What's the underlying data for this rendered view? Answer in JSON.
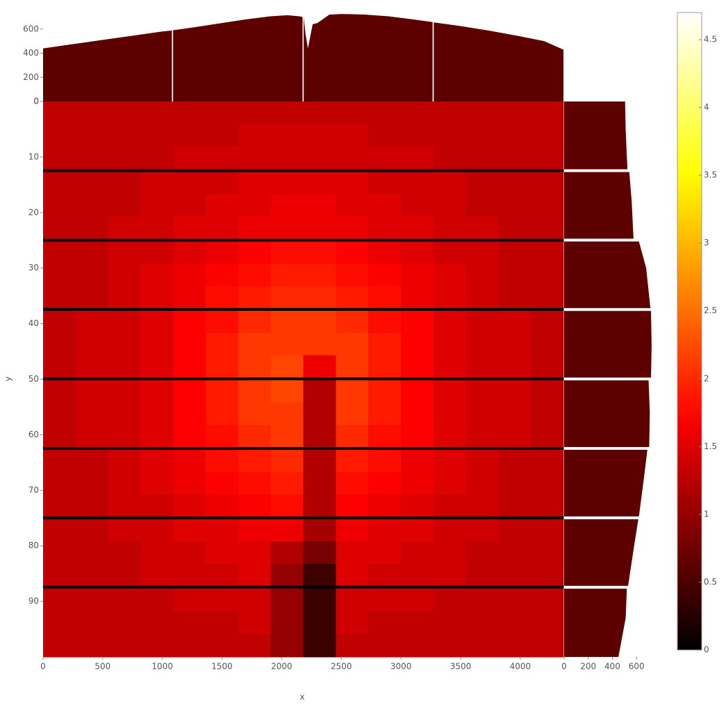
{
  "chart_data": [
    {
      "type": "heatmap",
      "x_label": "x",
      "y_label": "y",
      "colormap": "hot",
      "xlim": [
        0,
        4362
      ],
      "xticks": [
        0,
        500,
        1000,
        1500,
        2000,
        2500,
        3000,
        3500,
        4000
      ],
      "ylim": [
        0,
        100
      ],
      "y_inverted": true,
      "yticks": [
        0,
        10,
        20,
        30,
        40,
        50,
        60,
        70,
        80,
        90
      ],
      "clim": [
        0,
        4.7
      ],
      "cticks": [
        0,
        0.5,
        1,
        1.5,
        2,
        2.5,
        3,
        3.5,
        4,
        4.5
      ],
      "x_edges": [
        0,
        272.6,
        545.3,
        817.9,
        1090.5,
        1363.1,
        1635.8,
        1908.4,
        2181,
        2453.6,
        2726.3,
        2998.9,
        3271.5,
        3544.1,
        3816.8,
        4089.4,
        4362
      ],
      "y_edges": [
        0,
        4,
        8,
        12.2,
        12.7,
        16.7,
        20.7,
        24.7,
        25.2,
        29.2,
        33.2,
        37.2,
        37.7,
        41.7,
        45.7,
        49.7,
        50.2,
        54.2,
        58.2,
        62.2,
        62.7,
        66.7,
        70.7,
        74.7,
        75.2,
        79.2,
        83.2,
        87.2,
        87.7,
        91.8,
        95.9,
        100
      ],
      "values": [
        [
          1.3,
          1.3,
          1.3,
          1.3,
          1.3,
          1.3,
          1.3,
          1.3,
          1.3,
          1.3,
          1.3,
          1.3,
          1.3,
          1.3,
          1.3,
          1.3
        ],
        [
          1.3,
          1.3,
          1.3,
          1.3,
          1.3,
          1.3,
          1.4,
          1.4,
          1.4,
          1.4,
          1.3,
          1.3,
          1.3,
          1.3,
          1.3,
          1.3
        ],
        [
          1.3,
          1.3,
          1.3,
          1.3,
          1.4,
          1.4,
          1.4,
          1.4,
          1.4,
          1.4,
          1.4,
          1.4,
          1.3,
          1.3,
          1.3,
          1.3
        ],
        [
          0,
          0,
          0,
          0,
          0,
          0,
          0,
          0,
          0,
          0,
          0,
          0,
          0,
          0,
          0,
          0
        ],
        [
          1.3,
          1.3,
          1.3,
          1.4,
          1.4,
          1.4,
          1.5,
          1.5,
          1.5,
          1.5,
          1.4,
          1.4,
          1.4,
          1.3,
          1.3,
          1.3
        ],
        [
          1.3,
          1.3,
          1.3,
          1.4,
          1.4,
          1.5,
          1.5,
          1.6,
          1.6,
          1.5,
          1.5,
          1.4,
          1.4,
          1.3,
          1.3,
          1.3
        ],
        [
          1.3,
          1.3,
          1.4,
          1.4,
          1.5,
          1.5,
          1.6,
          1.6,
          1.6,
          1.6,
          1.5,
          1.5,
          1.4,
          1.4,
          1.3,
          1.3
        ],
        [
          0,
          0,
          0,
          0,
          0,
          0,
          0,
          0,
          0,
          0,
          0,
          0,
          0,
          0,
          0,
          0
        ],
        [
          1.3,
          1.3,
          1.4,
          1.4,
          1.5,
          1.6,
          1.7,
          1.8,
          1.8,
          1.7,
          1.6,
          1.5,
          1.4,
          1.4,
          1.3,
          1.3
        ],
        [
          1.3,
          1.3,
          1.4,
          1.5,
          1.6,
          1.7,
          1.8,
          1.9,
          1.9,
          1.8,
          1.7,
          1.6,
          1.5,
          1.4,
          1.3,
          1.3
        ],
        [
          1.3,
          1.3,
          1.4,
          1.5,
          1.6,
          1.8,
          1.9,
          2.0,
          2.0,
          1.9,
          1.8,
          1.6,
          1.5,
          1.4,
          1.3,
          1.3
        ],
        [
          0,
          0,
          0,
          0,
          0,
          0,
          0,
          0,
          0,
          0,
          0,
          0,
          0,
          0,
          0,
          0
        ],
        [
          1.3,
          1.4,
          1.4,
          1.5,
          1.7,
          1.8,
          2.0,
          2.1,
          2.1,
          2.0,
          1.8,
          1.7,
          1.5,
          1.4,
          1.4,
          1.3
        ],
        [
          1.3,
          1.4,
          1.4,
          1.5,
          1.7,
          1.9,
          2.1,
          2.1,
          2.1,
          2.1,
          1.9,
          1.7,
          1.5,
          1.4,
          1.4,
          1.3
        ],
        [
          1.3,
          1.4,
          1.4,
          1.5,
          1.7,
          1.9,
          2.1,
          2.2,
          1.6,
          2.1,
          1.9,
          1.7,
          1.5,
          1.4,
          1.4,
          1.3
        ],
        [
          0,
          0,
          0,
          0,
          0,
          0,
          0,
          0,
          0,
          0,
          0,
          0,
          0,
          0,
          0,
          0
        ],
        [
          1.3,
          1.4,
          1.4,
          1.5,
          1.7,
          1.9,
          2.1,
          2.2,
          1.2,
          2.1,
          1.9,
          1.7,
          1.5,
          1.4,
          1.4,
          1.3
        ],
        [
          1.3,
          1.4,
          1.4,
          1.5,
          1.7,
          1.9,
          2.1,
          2.1,
          1.2,
          2.1,
          1.9,
          1.7,
          1.5,
          1.4,
          1.4,
          1.3
        ],
        [
          1.3,
          1.4,
          1.4,
          1.5,
          1.7,
          1.8,
          2.0,
          2.1,
          1.2,
          2.0,
          1.8,
          1.7,
          1.5,
          1.4,
          1.4,
          1.3
        ],
        [
          0,
          0,
          0,
          0,
          0,
          0,
          0,
          0,
          0,
          0,
          0,
          0,
          0,
          0,
          0,
          0
        ],
        [
          1.3,
          1.3,
          1.4,
          1.5,
          1.6,
          1.8,
          1.9,
          2.0,
          1.2,
          1.9,
          1.8,
          1.6,
          1.5,
          1.4,
          1.3,
          1.3
        ],
        [
          1.3,
          1.3,
          1.4,
          1.5,
          1.6,
          1.7,
          1.8,
          1.9,
          1.2,
          1.8,
          1.7,
          1.6,
          1.5,
          1.4,
          1.3,
          1.3
        ],
        [
          1.3,
          1.3,
          1.4,
          1.4,
          1.5,
          1.6,
          1.7,
          1.8,
          1.2,
          1.7,
          1.6,
          1.5,
          1.4,
          1.4,
          1.3,
          1.3
        ],
        [
          0,
          0,
          0,
          0,
          0,
          0,
          0,
          0,
          0,
          0,
          0,
          0,
          0,
          0,
          0,
          0
        ],
        [
          1.3,
          1.3,
          1.4,
          1.4,
          1.5,
          1.5,
          1.6,
          1.6,
          1.1,
          1.6,
          1.5,
          1.5,
          1.4,
          1.4,
          1.3,
          1.3
        ],
        [
          1.3,
          1.3,
          1.3,
          1.4,
          1.4,
          1.5,
          1.5,
          1.2,
          0.8,
          1.5,
          1.5,
          1.4,
          1.4,
          1.3,
          1.3,
          1.3
        ],
        [
          1.3,
          1.3,
          1.3,
          1.4,
          1.4,
          1.4,
          1.5,
          1.0,
          0.4,
          1.5,
          1.4,
          1.4,
          1.4,
          1.3,
          1.3,
          1.3
        ],
        [
          0,
          0,
          0,
          0,
          0,
          0,
          0,
          0,
          0,
          0,
          0,
          0,
          0,
          0,
          0,
          0
        ],
        [
          1.3,
          1.3,
          1.3,
          1.3,
          1.4,
          1.4,
          1.4,
          1.0,
          0.4,
          1.4,
          1.4,
          1.4,
          1.3,
          1.3,
          1.3,
          1.3
        ],
        [
          1.3,
          1.3,
          1.3,
          1.3,
          1.3,
          1.3,
          1.4,
          1.0,
          0.4,
          1.4,
          1.3,
          1.3,
          1.3,
          1.3,
          1.3,
          1.3
        ],
        [
          1.3,
          1.3,
          1.3,
          1.3,
          1.3,
          1.3,
          1.3,
          1.0,
          0.4,
          1.3,
          1.3,
          1.3,
          1.3,
          1.3,
          1.3,
          1.3
        ]
      ]
    },
    {
      "type": "area",
      "color": "#5c0000",
      "xlim": [
        0,
        4362
      ],
      "ylim": [
        0,
        760
      ],
      "yticks": [
        0,
        200,
        400,
        600
      ],
      "x": [
        0,
        250,
        500,
        750,
        1000,
        1080,
        1085,
        1090,
        1300,
        1500,
        1700,
        1900,
        2050,
        2150,
        2175,
        2180,
        2185,
        2200,
        2220,
        2260,
        2300,
        2400,
        2500,
        2700,
        2900,
        3100,
        3265,
        3270,
        3275,
        3500,
        3750,
        4000,
        4200,
        4362
      ],
      "values": [
        440,
        475,
        510,
        545,
        580,
        588,
        null,
        590,
        620,
        650,
        680,
        705,
        715,
        705,
        700,
        null,
        700,
        560,
        440,
        640,
        650,
        720,
        725,
        720,
        705,
        680,
        658,
        null,
        655,
        625,
        585,
        540,
        500,
        430
      ]
    },
    {
      "type": "area-horizontal",
      "color": "#5c0000",
      "ylim": [
        0,
        100
      ],
      "xlim": [
        0,
        760
      ],
      "xticks": [
        0,
        200,
        400,
        600
      ],
      "y": [
        0,
        5,
        10,
        12.2,
        12.45,
        12.7,
        18,
        24.7,
        24.95,
        25.2,
        30,
        37.2,
        37.45,
        37.7,
        44,
        49.7,
        49.95,
        50.2,
        56,
        62.2,
        62.45,
        62.7,
        68,
        74.7,
        74.95,
        75.2,
        80,
        87.2,
        87.45,
        87.7,
        93,
        100
      ],
      "values": [
        505,
        510,
        520,
        525,
        null,
        540,
        560,
        575,
        null,
        620,
        680,
        715,
        null,
        720,
        725,
        720,
        null,
        700,
        710,
        705,
        null,
        690,
        660,
        620,
        null,
        615,
        580,
        530,
        null,
        520,
        510,
        450
      ]
    }
  ]
}
